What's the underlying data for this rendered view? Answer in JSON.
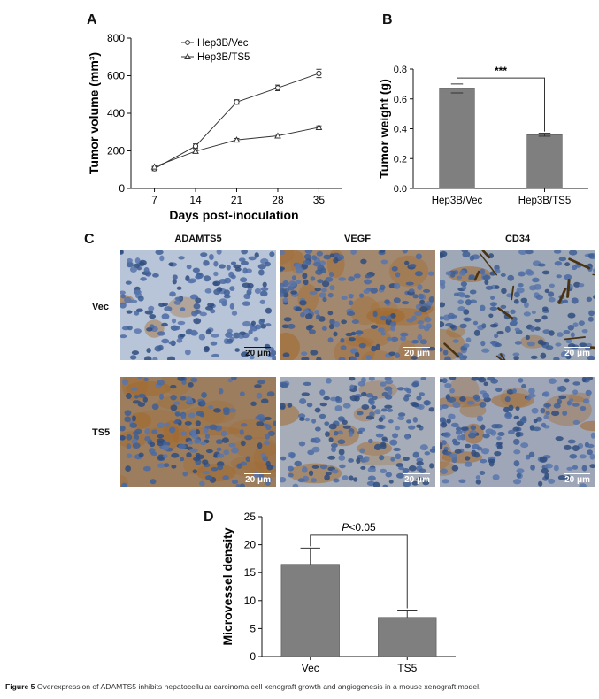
{
  "panel_labels": {
    "a": "A",
    "b": "B",
    "c": "C",
    "d": "D"
  },
  "chart_data": [
    {
      "panel": "A",
      "type": "line",
      "xlabel": "Days post-inoculation",
      "ylabel": "Tumor volume (mm³)",
      "x": [
        7,
        14,
        21,
        28,
        35
      ],
      "xlim": [
        3,
        39
      ],
      "ylim": [
        0,
        800
      ],
      "yticks": [
        0,
        200,
        400,
        600,
        800
      ],
      "legend_position": "top-left",
      "series": [
        {
          "name": "Hep3B/Vec",
          "marker": "circle",
          "values": [
            105,
            225,
            460,
            535,
            612
          ],
          "errors": [
            10,
            12,
            12,
            15,
            22
          ]
        },
        {
          "name": "Hep3B/TS5",
          "marker": "triangle",
          "values": [
            115,
            198,
            258,
            280,
            325
          ],
          "errors": [
            8,
            8,
            8,
            8,
            8
          ]
        }
      ]
    },
    {
      "panel": "B",
      "type": "bar",
      "ylabel": "Tumor weight (g)",
      "categories": [
        "Hep3B/Vec",
        "Hep3B/TS5"
      ],
      "values": [
        0.67,
        0.36
      ],
      "errors": [
        0.03,
        0.01
      ],
      "ylim": [
        0,
        0.8
      ],
      "yticks": [
        "0.0",
        "0.2",
        "0.4",
        "0.6",
        "0.8"
      ],
      "significance": "***",
      "bar_color": "#7f7f7f"
    },
    {
      "panel": "D",
      "type": "bar",
      "ylabel": "Microvessel density",
      "categories": [
        "Vec",
        "TS5"
      ],
      "values": [
        16.5,
        7.0
      ],
      "errors": [
        2.9,
        1.3
      ],
      "ylim": [
        0,
        25
      ],
      "yticks": [
        0,
        5,
        10,
        15,
        20,
        25
      ],
      "significance_prefix": "P",
      "significance_rest": "<0.05",
      "bar_color": "#7f7f7f"
    }
  ],
  "micrographs": {
    "columns": [
      "ADAMTS5",
      "VEGF",
      "CD34"
    ],
    "rows": [
      "Vec",
      "TS5"
    ],
    "scale_bar": "20 μm"
  },
  "caption": {
    "label": "Figure 5",
    "text": " Overexpression of ADAMTS5 inhibits hepatocellular carcinoma cell xenograft growth and angiogenesis in a mouse xenograft model."
  }
}
